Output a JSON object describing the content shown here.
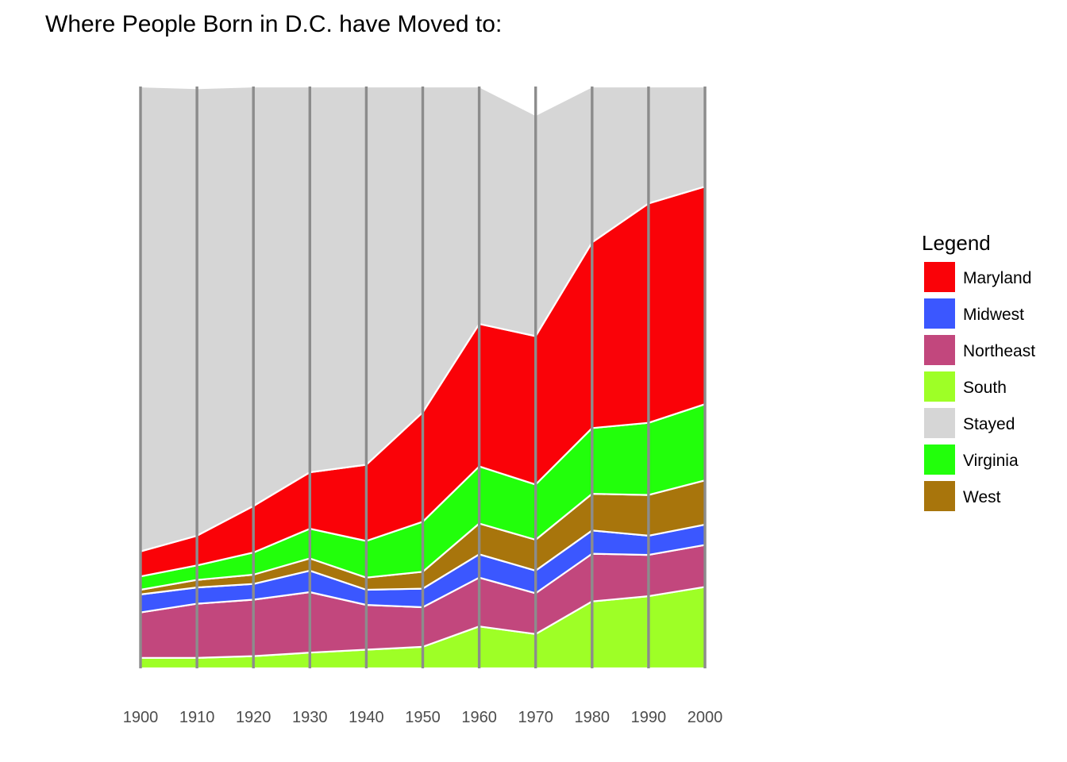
{
  "chart_data": {
    "type": "area",
    "stacked": true,
    "title": "Where People Born in D.C. have Moved to:",
    "xlabel": "",
    "ylabel": "",
    "x": [
      1900,
      1910,
      1920,
      1930,
      1940,
      1950,
      1960,
      1970,
      1980,
      1990,
      2000
    ],
    "x_tick_labels": [
      "1900",
      "1910",
      "1920",
      "1930",
      "1940",
      "1950",
      "1960",
      "1970",
      "1980",
      "1990",
      "2000"
    ],
    "ylim": [
      0,
      100
    ],
    "grid": "vertical lines at each x tick",
    "legend": {
      "title": "Legend",
      "position": "right"
    },
    "stack_order_bottom_to_top": [
      "South",
      "Northeast",
      "Midwest",
      "West",
      "Virginia",
      "Maryland",
      "Stayed"
    ],
    "series": [
      {
        "name": "South",
        "color": "#9EFF26",
        "values": [
          1.8,
          1.8,
          2.1,
          2.7,
          3.2,
          3.7,
          7.2,
          5.9,
          11.5,
          12.4,
          14.0
        ]
      },
      {
        "name": "Northeast",
        "color": "#C2477D",
        "values": [
          7.8,
          9.3,
          9.7,
          10.4,
          7.7,
          6.8,
          8.4,
          7.0,
          8.2,
          7.1,
          7.2
        ]
      },
      {
        "name": "Midwest",
        "color": "#3B57FF",
        "values": [
          3.1,
          2.8,
          2.7,
          3.7,
          2.6,
          3.2,
          4.0,
          3.9,
          4.0,
          3.3,
          3.5
        ]
      },
      {
        "name": "West",
        "color": "#A8750C",
        "values": [
          0.8,
          1.3,
          1.6,
          2.1,
          2.1,
          2.9,
          5.3,
          5.3,
          6.3,
          7.0,
          7.6
        ]
      },
      {
        "name": "Virginia",
        "color": "#22FF0B",
        "values": [
          2.3,
          2.5,
          3.8,
          5.1,
          6.3,
          8.6,
          9.8,
          9.5,
          11.3,
          12.4,
          13.1
        ]
      },
      {
        "name": "Maryland",
        "color": "#FA0208",
        "values": [
          4.3,
          5.1,
          8.0,
          9.7,
          13.1,
          18.8,
          24.5,
          25.5,
          31.9,
          37.7,
          37.4
        ]
      },
      {
        "name": "Stayed",
        "color": "#D6D6D6",
        "values": [
          79.9,
          76.9,
          72.1,
          66.3,
          65.0,
          56.0,
          40.8,
          38.0,
          26.8,
          20.1,
          17.2
        ]
      }
    ]
  }
}
